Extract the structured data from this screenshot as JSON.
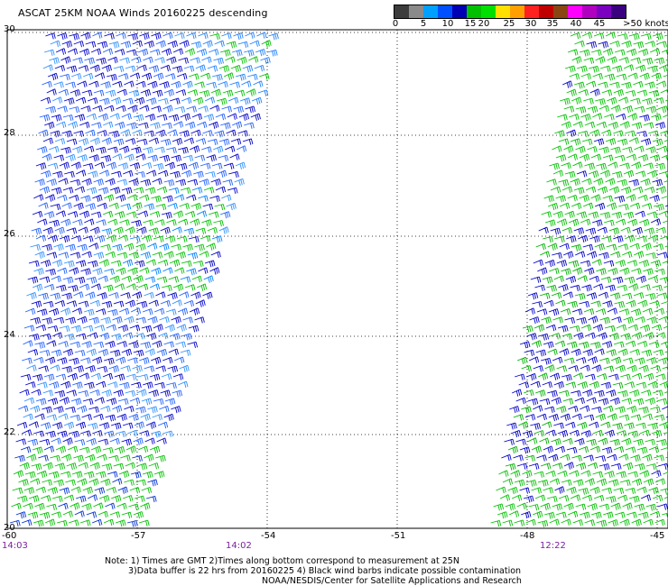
{
  "title": "ASCAT 25KM NOAA Winds 20160225 descending",
  "colorbar": {
    "colors": [
      "#3c3c3c",
      "#8a8a8a",
      "#00a0ff",
      "#0050ff",
      "#0000b4",
      "#00c000",
      "#00e000",
      "#ffe000",
      "#ffa000",
      "#ff2020",
      "#c00000",
      "#8b4513",
      "#ff00ff",
      "#b000c0",
      "#7b00c0",
      "#3a0080"
    ],
    "labels": [
      "0",
      "5",
      "10",
      "15",
      "20",
      "25",
      "30",
      "35",
      "40",
      "45",
      ">50 knots"
    ]
  },
  "axes": {
    "x_ticks": [
      "-60",
      "-57",
      "-54",
      "-51",
      "-48",
      "-45"
    ],
    "y_ticks": [
      "30",
      "28",
      "26",
      "24",
      "22",
      "20"
    ]
  },
  "pass_times": [
    "14:03",
    "14:02",
    "12:22"
  ],
  "notes": {
    "line1": "Note: 1) Times are GMT 2)Times along bottom correspond to measurement at 25N",
    "line2": "3)Data buffer is 22 hrs from 20160225 4) Black wind barbs indicate possible contamination",
    "line3": "NOAA/NESDIS/Center for Satellite Applications and Research"
  },
  "swaths": [
    {
      "name": "west-swath",
      "color_range": [
        "#0000c8",
        "#3070ff",
        "#00c000"
      ]
    },
    {
      "name": "east-swath",
      "color_range": [
        "#00b000",
        "#00d000",
        "#0000c8"
      ]
    }
  ]
}
